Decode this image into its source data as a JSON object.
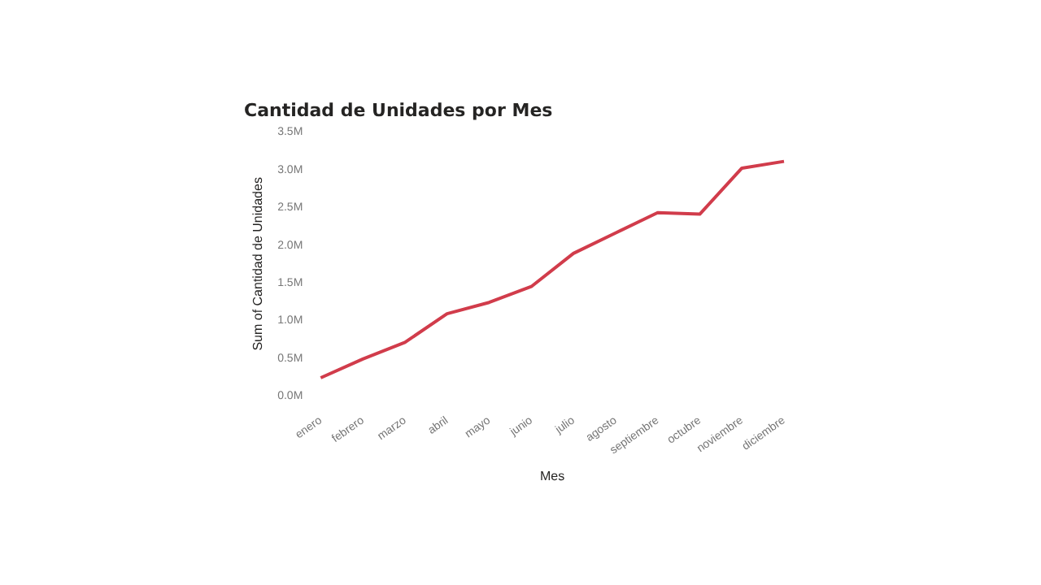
{
  "chart_data": {
    "type": "line",
    "title": "Cantidad de Unidades por Mes",
    "xlabel": "Mes",
    "ylabel": "Sum of Cantidad de Unidades",
    "categories": [
      "enero",
      "febrero",
      "marzo",
      "abril",
      "mayo",
      "junio",
      "julio",
      "agosto",
      "septiembre",
      "octubre",
      "noviembre",
      "diciembre"
    ],
    "series": [
      {
        "color": "#d13c4b",
        "values": [
          0.24,
          0.49,
          0.71,
          1.09,
          1.24,
          1.45,
          1.89,
          2.16,
          2.43,
          2.41,
          3.02,
          3.11
        ]
      }
    ],
    "ylim": [
      0,
      3.5
    ],
    "yticks": [
      {
        "value": 0,
        "label": "0.0M"
      },
      {
        "value": 0.5,
        "label": "0.5M"
      },
      {
        "value": 1,
        "label": "1.0M"
      },
      {
        "value": 1.5,
        "label": "1.5M"
      },
      {
        "value": 2,
        "label": "2.0M"
      },
      {
        "value": 2.5,
        "label": "2.5M"
      },
      {
        "value": 3,
        "label": "3.0M"
      },
      {
        "value": 3.5,
        "label": "3.5M"
      }
    ],
    "grid": false,
    "legend": false,
    "marker": "none",
    "line_style": "solid"
  }
}
